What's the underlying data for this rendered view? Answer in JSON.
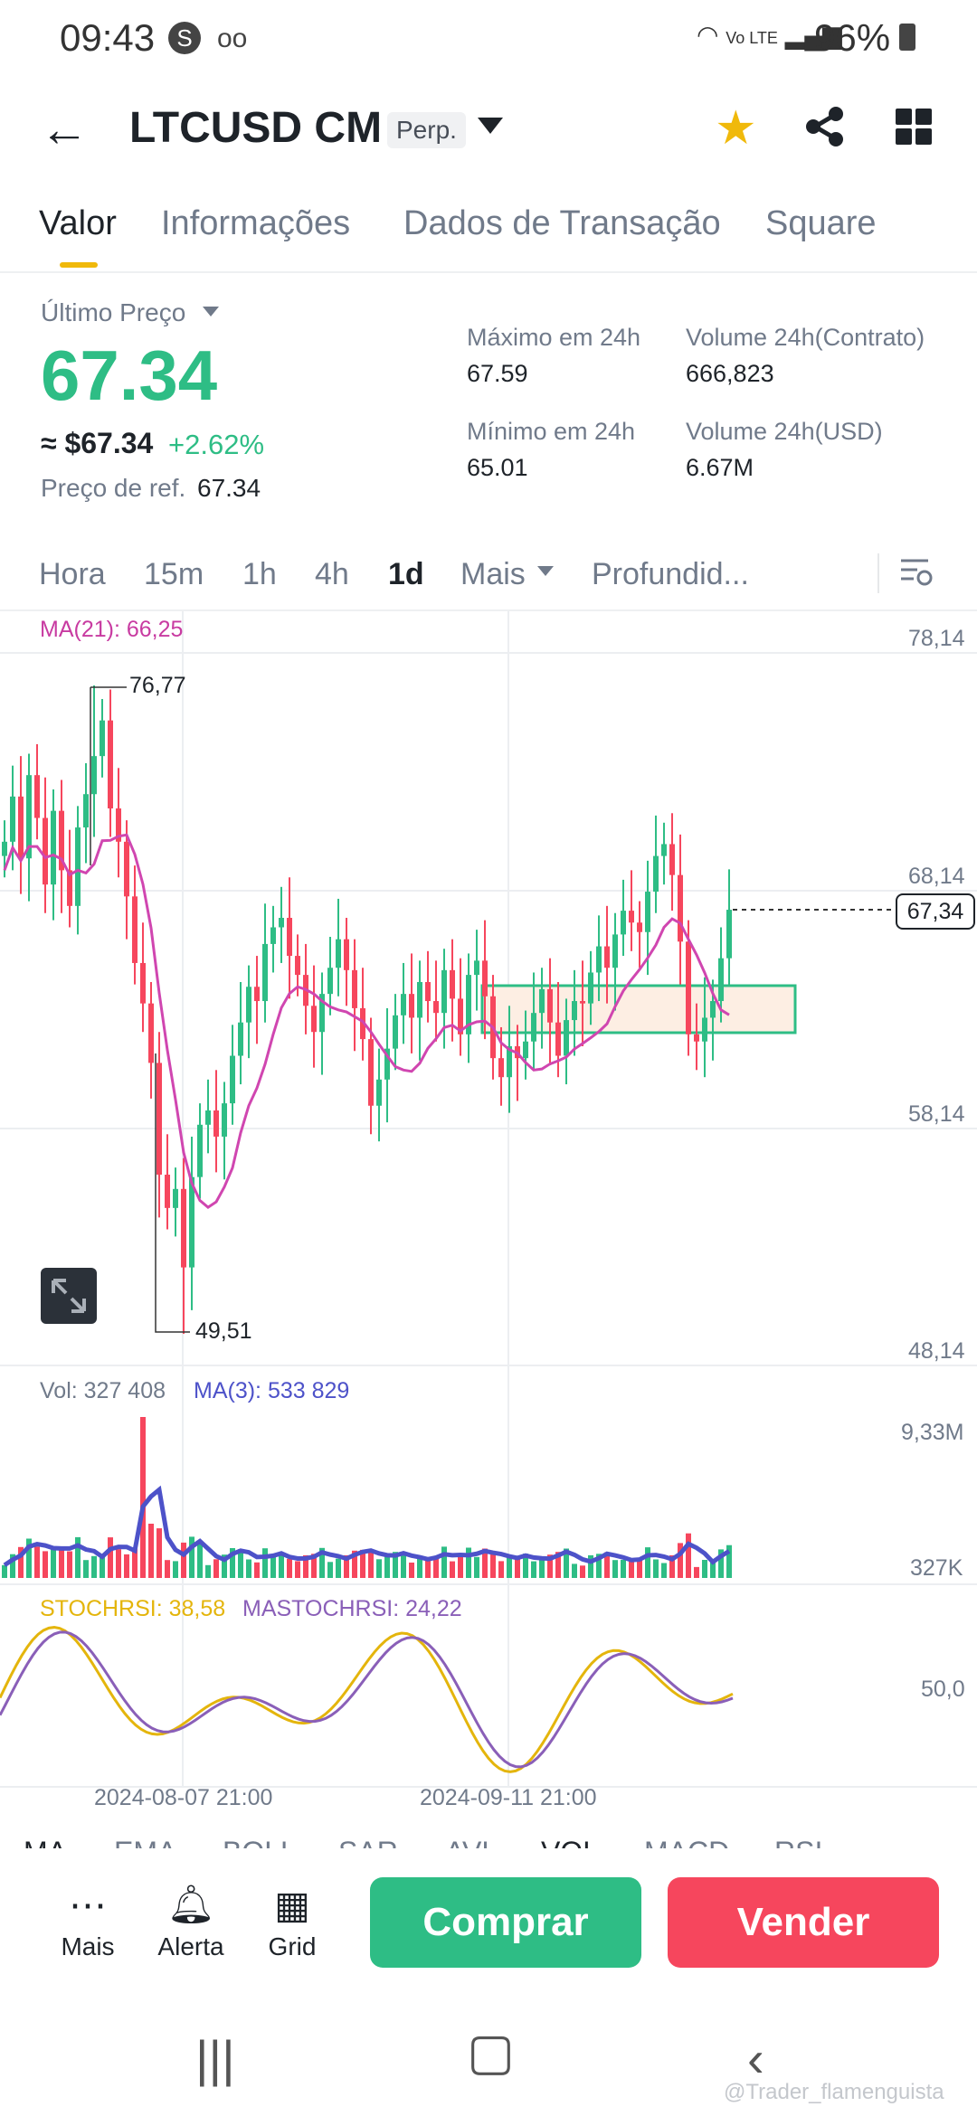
{
  "status_bar": {
    "time": "09:43",
    "notif_icon": "S",
    "voicemail": "oo",
    "network": "Vo LTE",
    "battery": "96%"
  },
  "header": {
    "pair": "LTCUSD CM",
    "contract_type": "Perp.",
    "icons": [
      "back-arrow-icon",
      "chevron-down-icon",
      "star-icon",
      "share-icon",
      "grid-icon"
    ]
  },
  "tabs": [
    "Valor",
    "Informações",
    "Dados de Transação",
    "Square"
  ],
  "price": {
    "last_label": "Último Preço",
    "last": "67.34",
    "approx": "≈ $67.34",
    "change": "+2.62%",
    "ref_label": "Preço de ref.",
    "ref": "67.34",
    "high_label": "Máximo em 24h",
    "high": "67.59",
    "low_label": "Mínimo em 24h",
    "low": "65.01",
    "vol_contract_label": "Volume 24h(Contrato)",
    "vol_contract": "666,823",
    "vol_usd_label": "Volume 24h(USD)",
    "vol_usd": "6.67M"
  },
  "timeframes": [
    "Hora",
    "15m",
    "1h",
    "4h",
    "1d",
    "Mais",
    "Profundid..."
  ],
  "chart": {
    "ma_label": "MA(21): 66,25",
    "price_axis": [
      "78,14",
      "68,14",
      "58,14",
      "48,14"
    ],
    "current_price": "67,34",
    "high_marker": "76,77",
    "low_marker": "49,51",
    "vol_label": "Vol: 327 408",
    "vol_ma_label": "MA(3): 533 829",
    "vol_axis": [
      "9,33M",
      "327K"
    ],
    "stoch_label": "STOCHRSI: 38,58",
    "mastoch_label": "MASTOCHRSI: 24,22",
    "stoch_axis": "50,0",
    "dates": [
      "2024-08-07 21:00",
      "2024-09-11 21:00"
    ]
  },
  "indicators": [
    "MA",
    "EMA",
    "BOLL",
    "SAR",
    "AVL",
    "VOL",
    "MACD",
    "RSI"
  ],
  "bottom": {
    "more": "Mais",
    "alert": "Alerta",
    "grid": "Grid",
    "buy": "Comprar",
    "sell": "Vender"
  },
  "watermark": "@Trader_flamenguista",
  "colors": {
    "up": "#2ebd85",
    "down": "#f6465d",
    "accent": "#f0b90b",
    "ma": "#c83ba1",
    "vol_ma": "#4d52c9",
    "stoch": "#e4b50c",
    "mastoch": "#8a5fb8"
  },
  "chart_data": {
    "type": "candlestick",
    "price_axis_ticks": [
      78.14,
      68.14,
      58.14,
      48.14
    ],
    "high": 76.77,
    "low": 49.51,
    "last": 67.34,
    "ma21_last": 66.25,
    "highlight_zone": [
      61.9,
      65.6
    ],
    "close": [
      70.2,
      72.1,
      69.5,
      73.0,
      71.2,
      68.4,
      71.5,
      69.0,
      67.5,
      70.8,
      72.2,
      73.8,
      75.3,
      71.6,
      70.2,
      67.9,
      65.1,
      63.4,
      60.9,
      56.2,
      54.8,
      55.6,
      52.3,
      56.1,
      58.3,
      58.9,
      57.8,
      59.2,
      61.2,
      62.6,
      64.1,
      63.5,
      65.9,
      66.6,
      67.0,
      65.4,
      64.6,
      63.3,
      62.2,
      63.8,
      64.9,
      66.1,
      64.8,
      63.2,
      61.9,
      59.1,
      60.2,
      61.5,
      62.9,
      63.8,
      62.8,
      64.3,
      63.5,
      63.0,
      64.8,
      63.6,
      62.1,
      64.6,
      65.2,
      63.7,
      61.1,
      60.3,
      61.6,
      61.1,
      61.8,
      63.0,
      64.0,
      62.6,
      61.2,
      62.7,
      63.5,
      63.4,
      64.7,
      65.8,
      64.9,
      66.3,
      67.3,
      66.8,
      66.4,
      68.1,
      69.6,
      70.1,
      68.8,
      66.0,
      62.1,
      61.8,
      62.8,
      63.5,
      65.3,
      67.34
    ],
    "volume_axis_ticks": [
      "9,33M",
      "327K"
    ],
    "stochrsi_last": 38.58,
    "mastochrsi_last": 24.22
  }
}
